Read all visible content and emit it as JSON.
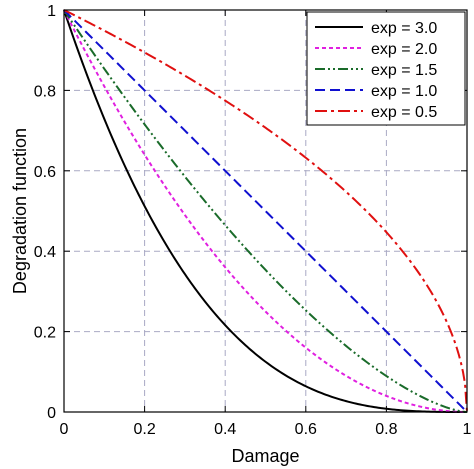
{
  "chart_data": {
    "type": "line",
    "title": "",
    "xlabel": "Damage",
    "ylabel": "Degradation function",
    "xlim": [
      0,
      1
    ],
    "ylim": [
      0,
      1
    ],
    "xticks": [
      "0",
      "0.2",
      "0.4",
      "0.6",
      "0.8",
      "1"
    ],
    "yticks": [
      "0",
      "0.2",
      "0.4",
      "0.6",
      "0.8",
      "1"
    ],
    "grid": true,
    "legend_position": "top-right",
    "function": "y = (1 - x)^exp",
    "series": [
      {
        "name": "exp = 3.0",
        "exponent": 3.0,
        "color": "#000000",
        "dash": "solid",
        "x": [
          0,
          0.2,
          0.4,
          0.6,
          0.8,
          1
        ],
        "values": [
          1,
          0.512,
          0.216,
          0.064,
          0.008,
          0
        ]
      },
      {
        "name": "exp = 2.0",
        "exponent": 2.0,
        "color": "#e020e0",
        "dash": "dotted",
        "x": [
          0,
          0.2,
          0.4,
          0.6,
          0.8,
          1
        ],
        "values": [
          1,
          0.64,
          0.36,
          0.16,
          0.04,
          0
        ]
      },
      {
        "name": "exp = 1.5",
        "exponent": 1.5,
        "color": "#1a6b2a",
        "dash": "dashdotdot",
        "x": [
          0,
          0.2,
          0.4,
          0.6,
          0.8,
          1
        ],
        "values": [
          1,
          0.716,
          0.465,
          0.253,
          0.089,
          0
        ]
      },
      {
        "name": "exp = 1.0",
        "exponent": 1.0,
        "color": "#1010d0",
        "dash": "dashed",
        "x": [
          0,
          0.2,
          0.4,
          0.6,
          0.8,
          1
        ],
        "values": [
          1,
          0.8,
          0.6,
          0.4,
          0.2,
          0
        ]
      },
      {
        "name": "exp = 0.5",
        "exponent": 0.5,
        "color": "#e01010",
        "dash": "dashdot",
        "x": [
          0,
          0.2,
          0.4,
          0.6,
          0.8,
          1
        ],
        "values": [
          1,
          0.894,
          0.775,
          0.632,
          0.447,
          0
        ]
      }
    ]
  }
}
